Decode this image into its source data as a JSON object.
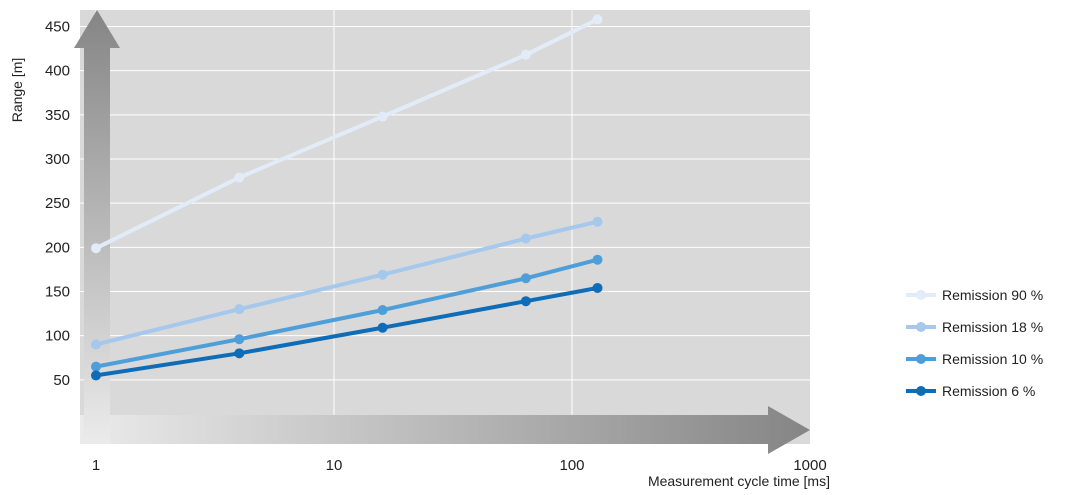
{
  "chart_data": {
    "type": "line",
    "title": "",
    "xlabel": "Measurement cycle time [ms]",
    "ylabel": "Range [m]",
    "x_scale": "log",
    "xlim": [
      1,
      1000
    ],
    "ylim": [
      0,
      480
    ],
    "x_ticks": [
      "1",
      "10",
      "100",
      "1000"
    ],
    "x_tick_values": [
      1,
      10,
      100,
      1000
    ],
    "y_ticks": [
      "50",
      "100",
      "150",
      "200",
      "250",
      "300",
      "350",
      "400",
      "450"
    ],
    "y_tick_values": [
      50,
      100,
      150,
      200,
      250,
      300,
      350,
      400,
      450
    ],
    "grid": true,
    "legend_position": "right",
    "x": [
      1,
      4,
      16,
      64,
      128
    ],
    "series": [
      {
        "name": "Remission 90 %",
        "color": "#e2ecf8",
        "values": [
          199,
          279,
          348,
          418,
          458
        ]
      },
      {
        "name": "Remission 18 %",
        "color": "#a6c8ec",
        "values": [
          90,
          130,
          169,
          210,
          229
        ]
      },
      {
        "name": "Remission 10 %",
        "color": "#4e9fd9",
        "values": [
          65,
          96,
          129,
          165,
          186
        ]
      },
      {
        "name": "Remission 6 %",
        "color": "#0f6cb6",
        "values": [
          55,
          80,
          109,
          139,
          154
        ]
      }
    ]
  }
}
